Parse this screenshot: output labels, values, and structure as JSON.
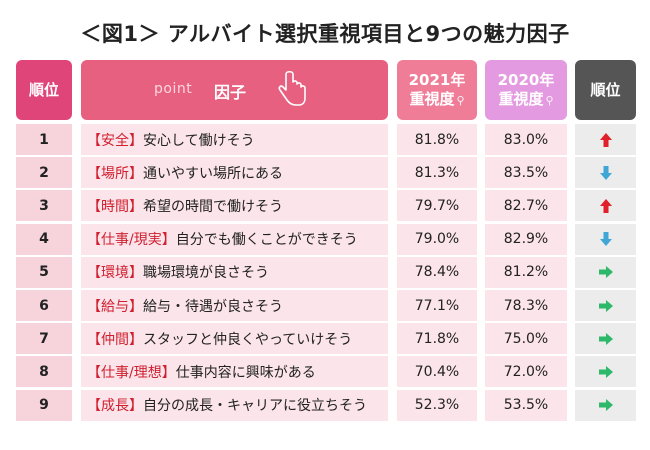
{
  "title": "＜図1＞ アルバイト選択重視項目と9つの魅力因子",
  "header": {
    "rank": "順位",
    "point": "point",
    "factor": "因子",
    "year_2021": "2021年",
    "year_2020": "2020年",
    "importance": "重視度",
    "movement": "順位"
  },
  "colors": {
    "up": "#e0202a",
    "down": "#3fa6d6",
    "same": "#2db86a"
  },
  "chart_data": {
    "type": "table",
    "columns": [
      "順位",
      "因子",
      "2021年 重視度",
      "2020年 重視度",
      "順位"
    ],
    "rows": [
      {
        "rank": "1",
        "category": "【安全】",
        "text": "安心して働けそう",
        "v2021": "81.8%",
        "v2020": "83.0%",
        "movement": "up"
      },
      {
        "rank": "2",
        "category": "【場所】",
        "text": "通いやすい場所にある",
        "v2021": "81.3%",
        "v2020": "83.5%",
        "movement": "down"
      },
      {
        "rank": "3",
        "category": "【時間】",
        "text": "希望の時間で働けそう",
        "v2021": "79.7%",
        "v2020": "82.7%",
        "movement": "up"
      },
      {
        "rank": "4",
        "category": "【仕事/現実】",
        "text": "自分でも働くことができそう",
        "v2021": "79.0%",
        "v2020": "82.9%",
        "movement": "down"
      },
      {
        "rank": "5",
        "category": "【環境】",
        "text": "職場環境が良さそう",
        "v2021": "78.4%",
        "v2020": "81.2%",
        "movement": "same"
      },
      {
        "rank": "6",
        "category": "【給与】",
        "text": "給与・待遇が良さそう",
        "v2021": "77.1%",
        "v2020": "78.3%",
        "movement": "same"
      },
      {
        "rank": "7",
        "category": "【仲間】",
        "text": "スタッフと仲良くやっていけそう",
        "v2021": "71.8%",
        "v2020": "75.0%",
        "movement": "same"
      },
      {
        "rank": "8",
        "category": "【仕事/理想】",
        "text": "仕事内容に興味がある",
        "v2021": "70.4%",
        "v2020": "72.0%",
        "movement": "same"
      },
      {
        "rank": "9",
        "category": "【成長】",
        "text": "自分の成長・キャリアに役立ちそう",
        "v2021": "52.3%",
        "v2020": "53.5%",
        "movement": "same"
      }
    ]
  }
}
